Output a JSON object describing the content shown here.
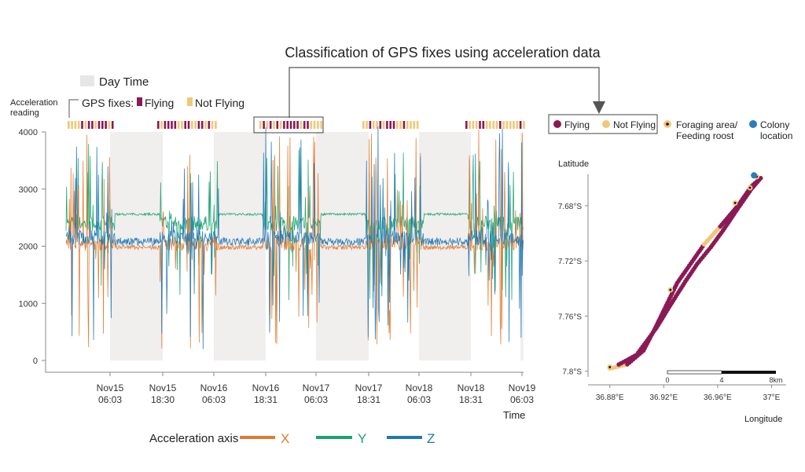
{
  "title": "Classification of GPS fixes using acceleration data",
  "legend_top": {
    "day_time": "Day Time",
    "gps_fixes": "GPS fixes:",
    "flying": "Flying",
    "not_flying": "Not Flying"
  },
  "colors": {
    "flying": "#8a1a55",
    "not_flying": "#f0c878",
    "day_shade": "#f1eeee",
    "x": "#e07a2f",
    "y": "#1aa36f",
    "z": "#1f78b4",
    "colony": "#2b7bc0"
  },
  "chart_data": [
    {
      "type": "line",
      "ylabel": "Acceleration\nreading",
      "xlabel": "Time",
      "ylim": [
        0,
        4000
      ],
      "yticks": [
        0,
        1000,
        2000,
        3000,
        4000
      ],
      "x_ticks": [
        {
          "l1": "Nov15",
          "l2": "06:03"
        },
        {
          "l1": "Nov15",
          "l2": "18:30"
        },
        {
          "l1": "Nov16",
          "l2": "06:03"
        },
        {
          "l1": "Nov16",
          "l2": "18:31"
        },
        {
          "l1": "Nov17",
          "l2": "06:03"
        },
        {
          "l1": "Nov17",
          "l2": "18:31"
        },
        {
          "l1": "Nov18",
          "l2": "06:03"
        },
        {
          "l1": "Nov18",
          "l2": "18:31"
        },
        {
          "l1": "Nov19",
          "l2": "06:03"
        }
      ],
      "series": [
        {
          "name": "X",
          "baseline": 2050
        },
        {
          "name": "Y",
          "baseline": 2400
        },
        {
          "name": "Z",
          "baseline": 2150
        }
      ],
      "legend_title": "Acceleration axis"
    },
    {
      "type": "scatter",
      "xlabel": "Longitude",
      "ylabel": "Latitude",
      "x_tick_labels": [
        "36.88°E",
        "36.92°E",
        "36.96°E",
        "37°E"
      ],
      "x_ticks": [
        36.88,
        36.92,
        36.96,
        37.0
      ],
      "y_tick_labels": [
        "7.68°S",
        "7.72°S",
        "7.76°S",
        "7.8°S"
      ],
      "y_ticks": [
        -7.68,
        -7.72,
        -7.76,
        -7.8
      ],
      "legend": {
        "flying": "Flying",
        "not_flying": "Not Flying",
        "foraging": "Foraging area/\nFeeding roost",
        "colony": "Colony\nlocation"
      },
      "scalebar": {
        "labels": [
          "0",
          "4",
          "8km"
        ]
      },
      "track": [
        [
          36.88,
          -7.798
        ],
        [
          36.893,
          -7.795
        ],
        [
          36.905,
          -7.785
        ],
        [
          36.913,
          -7.77
        ],
        [
          36.922,
          -7.752
        ],
        [
          36.93,
          -7.736
        ],
        [
          36.94,
          -7.722
        ],
        [
          36.95,
          -7.708
        ],
        [
          36.962,
          -7.695
        ],
        [
          36.975,
          -7.68
        ],
        [
          36.985,
          -7.666
        ],
        [
          36.992,
          -7.66
        ],
        [
          36.985,
          -7.668
        ],
        [
          36.975,
          -7.682
        ],
        [
          36.964,
          -7.698
        ],
        [
          36.955,
          -7.71
        ],
        [
          36.945,
          -7.722
        ],
        [
          36.936,
          -7.735
        ],
        [
          36.925,
          -7.752
        ],
        [
          36.915,
          -7.768
        ],
        [
          36.9,
          -7.788
        ],
        [
          36.885,
          -7.796
        ]
      ],
      "not_flying_segments": [
        [
          7,
          8
        ],
        [
          0,
          1
        ]
      ],
      "foraging_points": [
        [
          36.88,
          -7.797
        ],
        [
          36.984,
          -7.667
        ],
        [
          36.989,
          -7.659
        ],
        [
          36.925,
          -7.741
        ],
        [
          36.973,
          -7.678
        ]
      ],
      "colony": [
        36.987,
        -7.658
      ]
    }
  ]
}
